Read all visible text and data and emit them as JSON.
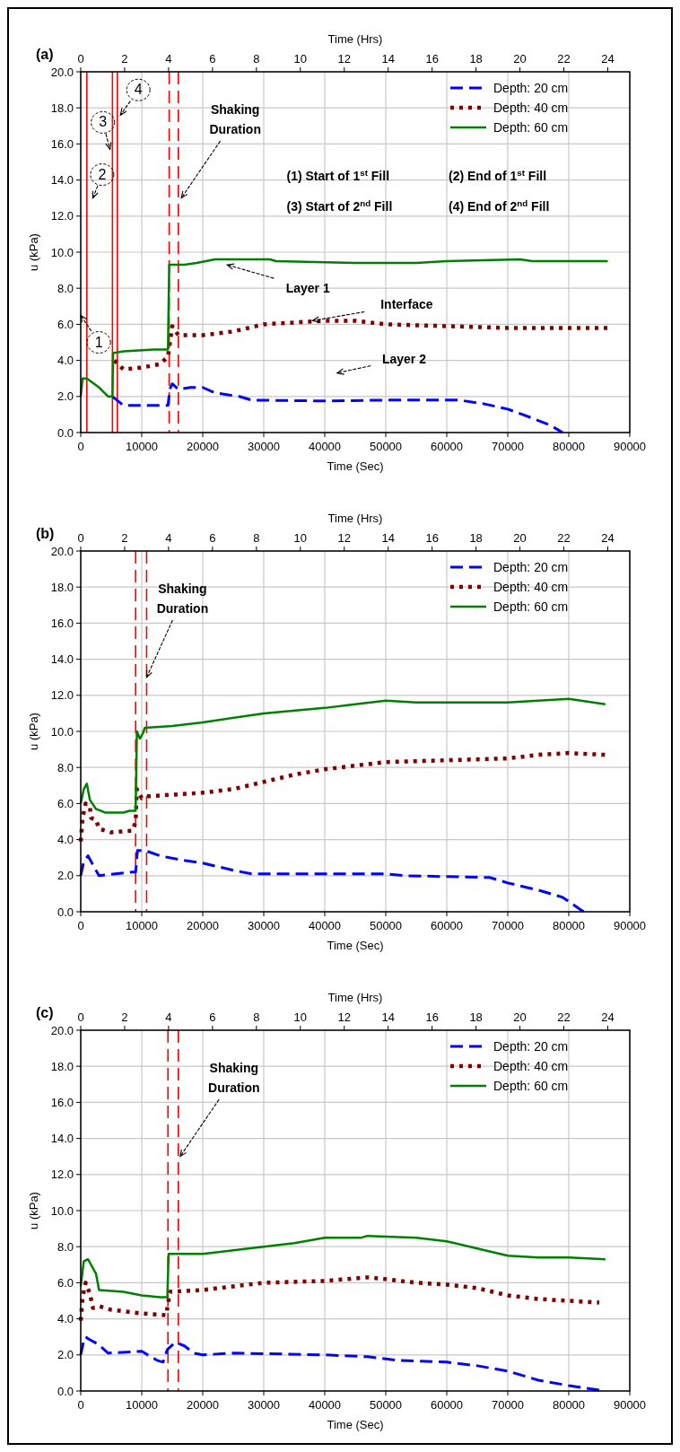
{
  "chart_data": [
    {
      "type": "line",
      "title": "(a)",
      "xlabel": "Time (Sec)",
      "x2label": "Time (Hrs)",
      "ylabel": "u (kPa)",
      "xlim": [
        0,
        90000
      ],
      "xticks": [
        0,
        10000,
        20000,
        30000,
        40000,
        50000,
        60000,
        70000,
        80000,
        90000
      ],
      "x2lim": [
        0,
        25
      ],
      "x2ticks": [
        0,
        2,
        4,
        6,
        8,
        10,
        12,
        14,
        16,
        18,
        20,
        22,
        24
      ],
      "ylim": [
        0,
        20
      ],
      "yticks": [
        {
          "value": 0,
          "label": "0.0"
        },
        {
          "value": 2,
          "label": "2.0"
        },
        {
          "value": 4,
          "label": "4.0"
        },
        {
          "value": 6,
          "label": "6.0"
        },
        {
          "value": 8,
          "label": "8.0"
        },
        {
          "value": 10,
          "label": "10.0"
        },
        {
          "value": 12,
          "label": "12.0"
        },
        {
          "value": 14,
          "label": "14.0"
        },
        {
          "value": 16,
          "label": "16.0"
        },
        {
          "value": 18,
          "label": "18.0"
        },
        {
          "value": 20,
          "label": "20.0"
        }
      ],
      "grid": true,
      "legend": "top right",
      "series": [
        {
          "name": "Depth: 20 cm",
          "color": "#0000ff",
          "line_style": "dashed",
          "x": [
            5200,
            7000,
            14300,
            14600,
            15000,
            16000,
            18000,
            20000,
            22000,
            26000,
            28000,
            40000,
            50000,
            60000,
            62000,
            66000,
            70000,
            74000,
            77000,
            79000
          ],
          "values": [
            2.0,
            1.5,
            1.5,
            2.4,
            2.7,
            2.4,
            2.5,
            2.5,
            2.2,
            2.0,
            1.8,
            1.75,
            1.8,
            1.8,
            1.8,
            1.6,
            1.3,
            0.8,
            0.4,
            0.0
          ]
        },
        {
          "name": "Depth: 40 cm",
          "color": "#800000",
          "line_style": "dotted",
          "x": [
            5500,
            7000,
            10000,
            13000,
            14300,
            15000,
            16000,
            20000,
            25000,
            30000,
            35000,
            40000,
            45000,
            50000,
            60000,
            70000,
            86400
          ],
          "values": [
            4.0,
            3.5,
            3.6,
            3.8,
            4.2,
            5.9,
            5.4,
            5.4,
            5.6,
            6.0,
            6.1,
            6.2,
            6.2,
            6.0,
            5.9,
            5.8,
            5.8
          ]
        },
        {
          "name": "Depth: 60 cm",
          "color": "#008000",
          "line_style": "solid",
          "x": [
            0,
            300,
            1000,
            3000,
            4500,
            5200,
            5300,
            7000,
            12000,
            14300,
            14500,
            17000,
            19000,
            22000,
            31000,
            32000,
            45000,
            55000,
            60000,
            72000,
            74000,
            86400
          ],
          "values": [
            2.0,
            3.0,
            3.0,
            2.5,
            2.0,
            2.0,
            4.4,
            4.5,
            4.6,
            4.6,
            9.3,
            9.3,
            9.4,
            9.6,
            9.6,
            9.5,
            9.4,
            9.4,
            9.5,
            9.6,
            9.5,
            9.5
          ]
        }
      ],
      "ref_lines": [
        {
          "axis": "x",
          "value": 1000,
          "color": "#ff0000",
          "line_style": "solid"
        },
        {
          "axis": "x",
          "value": 5200,
          "color": "#ff0000",
          "line_style": "solid"
        },
        {
          "axis": "x",
          "value": 6000,
          "color": "#ff0000",
          "line_style": "solid"
        },
        {
          "axis": "x",
          "value": 14500,
          "color": "#ff0000",
          "line_style": "dashed"
        },
        {
          "axis": "x",
          "value": 16000,
          "color": "#ff0000",
          "line_style": "dashed"
        }
      ],
      "annotations": [
        {
          "text": "Shaking\nDuration",
          "x": 16500,
          "y": 13.0
        },
        "1",
        "2",
        {
          "text": "3",
          "x": 4800,
          "y": 15.7
        },
        {
          "text": "4",
          "x": 6500,
          "y": 17.6
        },
        {
          "text": "Layer 1",
          "x": 24000,
          "y": 9.3
        },
        {
          "text": "Interface",
          "x": 38000,
          "y": 6.2
        },
        "Layer 2",
        "(1) Start of 1$^{st}$ Fill",
        "(2) End of 1$^{st}$ Fill",
        "(3) Start of 2$^{nd}$ Fill",
        "(4) End of 2$^{nd}$ Fill"
      ]
    },
    {
      "type": "line",
      "title": "(b)",
      "xlabel": "Time (Sec)",
      "x2label": "Time (Hrs)",
      "ylabel": "u (kPa)",
      "xlim": [
        0,
        90000
      ],
      "xticks": [
        0,
        10000,
        20000,
        30000,
        40000,
        50000,
        60000,
        70000,
        80000,
        90000
      ],
      "x2lim": [
        0,
        25
      ],
      "x2ticks": [
        0,
        2,
        4,
        6,
        8,
        10,
        12,
        14,
        16,
        18,
        20,
        22,
        24
      ],
      "ylim": [
        0,
        20
      ],
      "yticks": [
        {
          "value": 0,
          "label": "0.0"
        },
        {
          "value": 2,
          "label": "2.0"
        },
        {
          "value": 4,
          "label": "4.0"
        },
        {
          "value": 6,
          "label": "6.0"
        },
        {
          "value": 8,
          "label": "8.0"
        },
        {
          "value": 10,
          "label": "10.0"
        },
        {
          "value": 12,
          "label": "12.0"
        },
        {
          "value": 14,
          "label": "14.0"
        },
        {
          "value": 16,
          "label": "16.0"
        },
        {
          "value": 18,
          "label": "18.0"
        },
        {
          "value": 20,
          "label": "20.0"
        }
      ],
      "grid": true,
      "legend": "top right",
      "series": [
        {
          "name": "Depth: 20 cm",
          "color": "#0000ff",
          "line_style": "dashed",
          "x": [
            0,
            500,
            1200,
            2000,
            3000,
            8500,
            9000,
            9300,
            10500,
            13000,
            16000,
            20000,
            25000,
            28000,
            50000,
            53000,
            67000,
            70000,
            75000,
            79000,
            82000,
            82500
          ],
          "values": [
            2.0,
            2.8,
            3.1,
            2.6,
            2.0,
            2.2,
            2.2,
            3.4,
            3.4,
            3.1,
            2.9,
            2.7,
            2.3,
            2.1,
            2.1,
            2.0,
            1.9,
            1.6,
            1.2,
            0.8,
            0.1,
            0.0
          ]
        },
        {
          "name": "Depth: 40 cm",
          "color": "#800000",
          "line_style": "dotted",
          "x": [
            0,
            300,
            800,
            1500,
            1700,
            2500,
            3000,
            5000,
            8500,
            9000,
            9200,
            10000,
            11000,
            20000,
            25000,
            30000,
            35000,
            40000,
            45000,
            50000,
            60000,
            70000,
            75000,
            80000,
            86000
          ],
          "values": [
            3.9,
            5.2,
            6.0,
            5.8,
            5.2,
            5.1,
            4.6,
            4.4,
            4.5,
            5.0,
            6.8,
            6.3,
            6.4,
            6.6,
            6.8,
            7.2,
            7.6,
            7.9,
            8.1,
            8.3,
            8.4,
            8.5,
            8.7,
            8.8,
            8.7
          ]
        },
        {
          "name": "Depth: 60 cm",
          "color": "#008000",
          "line_style": "solid",
          "x": [
            0,
            500,
            1000,
            1500,
            2500,
            4000,
            7000,
            8000,
            9000,
            9200,
            9700,
            10200,
            10500,
            15000,
            20000,
            30000,
            40000,
            45000,
            50000,
            55000,
            70000,
            80000,
            86000
          ],
          "values": [
            6.0,
            6.8,
            7.1,
            6.2,
            5.7,
            5.5,
            5.5,
            5.6,
            5.6,
            10.0,
            9.6,
            9.9,
            10.2,
            10.3,
            10.5,
            11.0,
            11.3,
            11.5,
            11.7,
            11.6,
            11.6,
            11.8,
            11.5
          ]
        }
      ],
      "ref_lines": [
        {
          "axis": "x",
          "value": 9000,
          "color": "#ff0000",
          "line_style": "dashed"
        },
        {
          "axis": "x",
          "value": 10800,
          "color": "#ff0000",
          "line_style": "dashed"
        }
      ],
      "annotations": [
        {
          "text": "Shaking\nDuration",
          "x": 10800,
          "y": 13.0
        }
      ]
    },
    {
      "type": "line",
      "title": "(c)",
      "xlabel": "Time (Sec)",
      "x2label": "Time (Hrs)",
      "ylabel": "u (kPa)",
      "xlim": [
        0,
        90000
      ],
      "xticks": [
        0,
        10000,
        20000,
        30000,
        40000,
        50000,
        60000,
        70000,
        80000,
        90000
      ],
      "x2lim": [
        0,
        25
      ],
      "x2ticks": [
        0,
        2,
        4,
        6,
        8,
        10,
        12,
        14,
        16,
        18,
        20,
        22,
        24
      ],
      "ylim": [
        0,
        20
      ],
      "yticks": [
        {
          "value": 0,
          "label": "0.0"
        },
        {
          "value": 2,
          "label": "2.0"
        },
        {
          "value": 4,
          "label": "4.0"
        },
        {
          "value": 6,
          "label": "6.0"
        },
        {
          "value": 8,
          "label": "8.0"
        },
        {
          "value": 10,
          "label": "10.0"
        },
        {
          "value": 12,
          "label": "12.0"
        },
        {
          "value": 14,
          "label": "14.0"
        },
        {
          "value": 16,
          "label": "16.0"
        },
        {
          "value": 18,
          "label": "18.0"
        },
        {
          "value": 20,
          "label": "20.0"
        }
      ],
      "grid": true,
      "legend": "top right",
      "series": [
        {
          "name": "Depth: 20 cm",
          "color": "#0000ff",
          "line_style": "dashed",
          "x": [
            0,
            500,
            800,
            1200,
            2800,
            4500,
            10000,
            11500,
            12500,
            13500,
            14200,
            15500,
            17000,
            18500,
            20000,
            25000,
            40000,
            47000,
            52000,
            60000,
            65000,
            70000,
            75000,
            80000,
            86000
          ],
          "values": [
            2.0,
            2.8,
            3.0,
            2.9,
            2.6,
            2.1,
            2.2,
            1.9,
            1.7,
            1.6,
            2.3,
            2.7,
            2.5,
            2.1,
            2.0,
            2.1,
            2.0,
            1.9,
            1.7,
            1.6,
            1.4,
            1.1,
            0.6,
            0.3,
            0.0
          ]
        },
        {
          "name": "Depth: 40 cm",
          "color": "#800000",
          "line_style": "dotted",
          "x": [
            0,
            300,
            800,
            1500,
            2000,
            3000,
            5000,
            10000,
            14000,
            14300,
            14600,
            20000,
            25000,
            30000,
            40000,
            47000,
            50000,
            55000,
            60000,
            65000,
            70000,
            75000,
            80000,
            85000
          ],
          "values": [
            3.9,
            5.2,
            6.0,
            5.4,
            4.6,
            4.7,
            4.5,
            4.3,
            4.2,
            4.8,
            5.5,
            5.6,
            5.8,
            6.0,
            6.1,
            6.3,
            6.2,
            6.0,
            5.9,
            5.7,
            5.3,
            5.1,
            5.0,
            4.9
          ]
        },
        {
          "name": "Depth: 60 cm",
          "color": "#008000",
          "line_style": "solid",
          "x": [
            0,
            500,
            1200,
            2500,
            3000,
            7000,
            10000,
            13000,
            14200,
            14400,
            20000,
            25000,
            30000,
            35000,
            40000,
            46000,
            47000,
            55000,
            60000,
            65000,
            70000,
            75000,
            80000,
            86000
          ],
          "values": [
            5.8,
            7.2,
            7.3,
            6.5,
            5.6,
            5.5,
            5.3,
            5.2,
            5.2,
            7.6,
            7.6,
            7.8,
            8.0,
            8.2,
            8.5,
            8.5,
            8.6,
            8.5,
            8.3,
            7.9,
            7.5,
            7.4,
            7.4,
            7.3
          ]
        }
      ],
      "ref_lines": [
        {
          "axis": "x",
          "value": 14300,
          "color": "#ff0000",
          "line_style": "dashed"
        },
        {
          "axis": "x",
          "value": 16000,
          "color": "#ff0000",
          "line_style": "dashed"
        }
      ],
      "annotations": [
        {
          "text": "Shaking\nDuration",
          "x": 16300,
          "y": 13.0
        }
      ]
    }
  ]
}
